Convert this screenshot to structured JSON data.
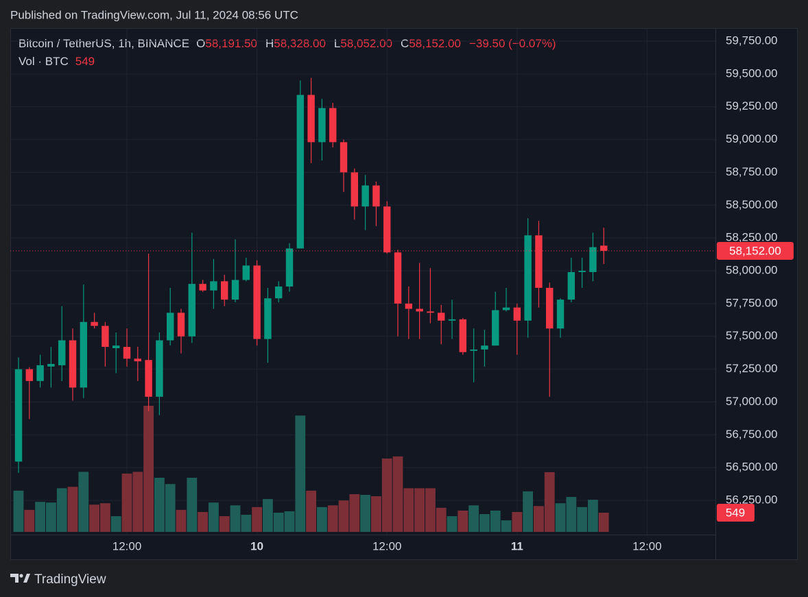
{
  "header": {
    "published": "Published on TradingView.com, Jul 11, 2024 08:56 UTC"
  },
  "chart_data": {
    "type": "candlestick",
    "legend": {
      "symbol": "Bitcoin / TetherUS, 1h, BINANCE",
      "ohlc": [
        {
          "label": "O",
          "value": "58,191.50"
        },
        {
          "label": "H",
          "value": "58,328.00"
        },
        {
          "label": "L",
          "value": "58,052.00"
        },
        {
          "label": "C",
          "value": "58,152.00"
        }
      ],
      "change": "−39.50 (−0.07%)",
      "volume_title": "Vol · BTC"
    },
    "up_color": "#089981",
    "down_color": "#f23645",
    "volume_up_color": "#1f5f59",
    "volume_down_color": "#7c2f36",
    "open": [
      56546,
      57250,
      57160,
      57270,
      57280,
      57470,
      57110,
      57610,
      57580,
      57410,
      57420,
      57330,
      57320,
      57040,
      57470,
      57680,
      57500,
      57900,
      57850,
      57920,
      57780,
      57930,
      58040,
      57480,
      57790,
      57880,
      58170,
      59340,
      58980,
      59240,
      58980,
      58750,
      58490,
      58650,
      58490,
      58140,
      57750,
      57710,
      57690,
      57680,
      57620,
      57630,
      57390,
      57400,
      57430,
      57700,
      57720,
      57620,
      58270,
      57870,
      57560,
      57780,
      57990,
      57990,
      58191.5
    ],
    "high": [
      57340,
      57265,
      57360,
      57420,
      57730,
      57560,
      57895,
      57680,
      57610,
      57530,
      57560,
      57420,
      58130,
      57530,
      57870,
      57710,
      58290,
      57930,
      58090,
      57970,
      58240,
      58100,
      58080,
      57870,
      57920,
      58210,
      59450,
      59470,
      59310,
      59280,
      59000,
      58780,
      58730,
      58680,
      58530,
      58160,
      57880,
      58060,
      58020,
      57740,
      57780,
      57640,
      57560,
      57550,
      57840,
      57870,
      57750,
      58400,
      58380,
      57910,
      57790,
      58100,
      58100,
      58290,
      58328
    ],
    "low": [
      56460,
      56870,
      57110,
      57110,
      57160,
      57010,
      57030,
      57560,
      57270,
      57220,
      57270,
      57160,
      56930,
      56900,
      57430,
      57370,
      57450,
      57840,
      57710,
      57730,
      57760,
      57920,
      57430,
      57300,
      57760,
      57840,
      58170,
      58820,
      58840,
      58940,
      58600,
      58390,
      58310,
      58340,
      58130,
      57500,
      57480,
      57480,
      57600,
      57440,
      57480,
      57360,
      57150,
      57270,
      57430,
      57690,
      57360,
      57490,
      57720,
      57040,
      57490,
      57760,
      57870,
      57920,
      58052
    ],
    "close": [
      57250,
      57160,
      57280,
      57290,
      57470,
      57110,
      57610,
      57580,
      57420,
      57430,
      57330,
      57310,
      57040,
      57470,
      57680,
      57500,
      57900,
      57850,
      57920,
      57780,
      57930,
      58040,
      57480,
      57790,
      57880,
      58170,
      59340,
      58980,
      59240,
      58980,
      58750,
      58490,
      58650,
      58490,
      58140,
      57750,
      57710,
      57690,
      57680,
      57620,
      57630,
      57380,
      57400,
      57430,
      57700,
      57720,
      57620,
      58270,
      57870,
      57560,
      57780,
      57990,
      58000,
      58180,
      58152
    ],
    "volume": {
      "values": [
        1180,
        630,
        860,
        840,
        1250,
        1290,
        1720,
        780,
        820,
        450,
        1670,
        1720,
        3610,
        1550,
        1370,
        630,
        1550,
        570,
        840,
        450,
        760,
        490,
        710,
        940,
        550,
        590,
        3330,
        1180,
        710,
        760,
        900,
        1080,
        1060,
        1020,
        2100,
        2160,
        1250,
        1250,
        1250,
        690,
        450,
        610,
        760,
        510,
        610,
        330,
        570,
        1160,
        740,
        1710,
        820,
        1000,
        710,
        920,
        549
      ]
    },
    "last_price_label": "58,152.00",
    "xlim": [
      -0.76,
      64.3
    ],
    "xticks": [
      {
        "value": 10,
        "label": "12:00"
      },
      {
        "value": 22,
        "label": "10"
      },
      {
        "value": 34,
        "label": "12:00"
      },
      {
        "value": 46,
        "label": "11"
      },
      {
        "value": 58,
        "label": "12:00"
      }
    ],
    "ylim": [
      55796,
      59844
    ],
    "yticks": [
      {
        "value": 56250,
        "label": "56,250.00"
      },
      {
        "value": 56500,
        "label": "56,500.00"
      },
      {
        "value": 56750,
        "label": "56,750.00"
      },
      {
        "value": 57000,
        "label": "57,000.00"
      },
      {
        "value": 57250,
        "label": "57,250.00"
      },
      {
        "value": 57500,
        "label": "57,500.00"
      },
      {
        "value": 57750,
        "label": "57,750.00"
      },
      {
        "value": 58000,
        "label": "58,000.00"
      },
      {
        "value": 58250,
        "label": "58,250.00"
      },
      {
        "value": 58500,
        "label": "58,500.00"
      },
      {
        "value": 58750,
        "label": "58,750.00"
      },
      {
        "value": 59000,
        "label": "59,000.00"
      },
      {
        "value": 59250,
        "label": "59,250.00"
      },
      {
        "value": 59500,
        "label": "59,500.00"
      },
      {
        "value": 59750,
        "label": "59,750.00"
      }
    ],
    "grid": true
  },
  "footer": {
    "brand": "TradingView"
  }
}
